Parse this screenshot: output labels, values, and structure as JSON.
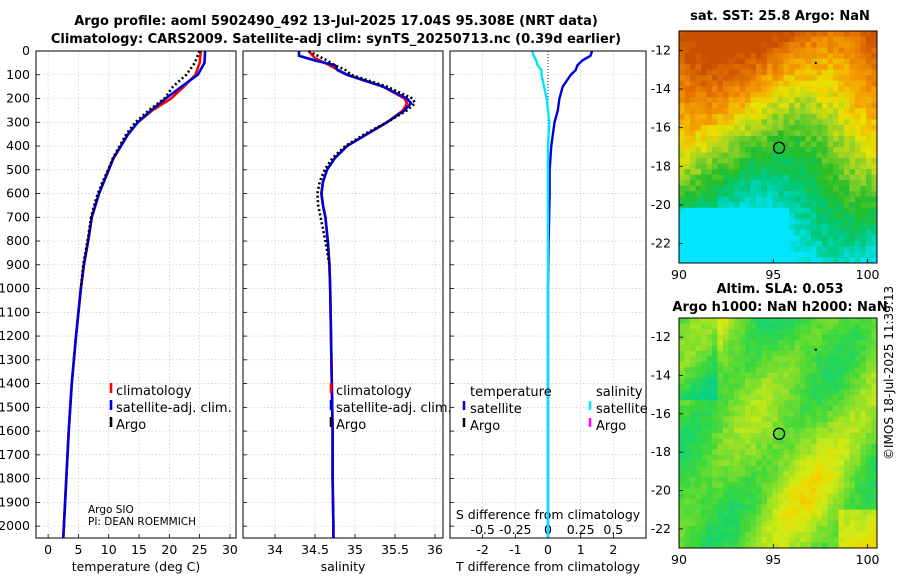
{
  "header": {
    "title_line1": "Argo profile: aoml 5902490_492 13-Jul-2025 17.04S 95.308E (NRT data)",
    "title_line2": "Climatology: CARS2009. Satellite-adj clim: synTS_20250713.nc (0.39d earlier)"
  },
  "maps": {
    "sst_title": "sat. SST: 25.8 Argo: NaN",
    "sla_title_line1": "Altim. SLA: 0.053",
    "sla_title_line2": "Argo h1000: NaN h2000: NaN",
    "x_ticks": [
      "90",
      "95",
      "100"
    ],
    "y_ticks": [
      "-12",
      "-14",
      "-16",
      "-18",
      "-20",
      "-22"
    ],
    "float_lon": 95.308,
    "float_lat": -17.04
  },
  "footer": {
    "stamp": "©IMOS 18-Jul-2025 11:39:13",
    "float_owner_line1": "Argo SIO",
    "float_owner_line2": "PI: DEAN ROEMMICH"
  },
  "colors": {
    "climatology": "#ff0000",
    "satellite": "#0000dd",
    "argo": "#000000",
    "salinity_satellite": "#00e5ff",
    "salinity_argo": "#ff00ff"
  },
  "chart_data": [
    {
      "type": "line",
      "title": "",
      "xlabel": "temperature (deg C)",
      "ylabel": "",
      "xlim": [
        -2,
        31
      ],
      "ylim": [
        2050,
        0
      ],
      "xticks": [
        "0",
        "5",
        "10",
        "15",
        "20",
        "25",
        "30"
      ],
      "yticks": [
        "0",
        "100",
        "200",
        "300",
        "400",
        "500",
        "600",
        "700",
        "800",
        "900",
        "1000",
        "1100",
        "1200",
        "1300",
        "1400",
        "1500",
        "1600",
        "1700",
        "1800",
        "1900",
        "2000"
      ],
      "legend": [
        "climatology",
        "satellite-adj. clim.",
        "Argo"
      ],
      "series": [
        {
          "name": "climatology",
          "depth": [
            0,
            50,
            100,
            150,
            200,
            250,
            300,
            350,
            400,
            450,
            500,
            550,
            600,
            650,
            700,
            800,
            900,
            1000,
            1200,
            1400,
            1600,
            1800,
            2000,
            2050
          ],
          "values": [
            25.2,
            25.0,
            24.3,
            22.4,
            20.3,
            17.2,
            14.8,
            13.2,
            12.0,
            10.8,
            10.0,
            9.2,
            8.4,
            7.8,
            7.2,
            6.6,
            5.9,
            5.4,
            4.6,
            3.9,
            3.4,
            3.0,
            2.6,
            2.5
          ]
        },
        {
          "name": "satellite-adj. clim.",
          "depth": [
            0,
            50,
            100,
            150,
            200,
            250,
            300,
            350,
            400,
            450,
            500,
            550,
            600,
            650,
            700,
            800,
            900,
            1000,
            1200,
            1400,
            1600,
            1800,
            2000,
            2050
          ],
          "values": [
            25.9,
            25.8,
            24.7,
            22.0,
            19.4,
            17.0,
            14.8,
            13.2,
            12.0,
            10.8,
            10.0,
            9.2,
            8.4,
            7.8,
            7.2,
            6.6,
            5.9,
            5.4,
            4.6,
            3.9,
            3.4,
            3.0,
            2.6,
            2.5
          ]
        },
        {
          "name": "Argo",
          "depth": [
            0,
            50,
            100,
            150,
            200,
            250,
            300,
            350,
            400,
            450,
            500,
            550,
            600,
            650,
            700,
            800,
            900,
            1000
          ],
          "values": [
            25.0,
            24.2,
            22.8,
            20.6,
            19.2,
            16.6,
            14.4,
            12.9,
            11.8,
            10.7,
            9.9,
            9.0,
            8.2,
            7.6,
            7.1,
            6.5,
            5.8,
            5.4
          ]
        }
      ]
    },
    {
      "type": "line",
      "title": "",
      "xlabel": "salinity",
      "ylabel": "",
      "xlim": [
        33.6,
        36.1
      ],
      "ylim": [
        2050,
        0
      ],
      "xticks": [
        "34",
        "34.5",
        "35",
        "35.5",
        "36"
      ],
      "legend": [
        "climatology",
        "satellite-adj. clim.",
        "Argo"
      ],
      "series": [
        {
          "name": "climatology",
          "depth": [
            0,
            30,
            60,
            100,
            150,
            200,
            220,
            250,
            300,
            350,
            400,
            450,
            500,
            550,
            600,
            650,
            700,
            800,
            900,
            1000,
            1200,
            1400,
            1600,
            1800,
            2000,
            2050
          ],
          "values": [
            34.42,
            34.5,
            34.68,
            34.9,
            35.35,
            35.62,
            35.65,
            35.6,
            35.4,
            35.15,
            34.9,
            34.75,
            34.65,
            34.6,
            34.58,
            34.6,
            34.63,
            34.66,
            34.68,
            34.69,
            34.7,
            34.71,
            34.72,
            34.72,
            34.73,
            34.73
          ]
        },
        {
          "name": "satellite-adj. clim.",
          "depth": [
            0,
            20,
            40,
            60,
            80,
            100,
            150,
            200,
            220,
            250,
            300,
            350,
            400,
            450,
            500,
            550,
            600,
            650,
            700,
            800,
            900,
            1000,
            1200,
            1400,
            1600,
            1800,
            2000,
            2050
          ],
          "values": [
            34.3,
            34.3,
            34.5,
            34.75,
            34.78,
            34.9,
            35.35,
            35.65,
            35.7,
            35.62,
            35.4,
            35.15,
            34.9,
            34.75,
            34.65,
            34.6,
            34.58,
            34.6,
            34.63,
            34.66,
            34.68,
            34.69,
            34.7,
            34.71,
            34.72,
            34.72,
            34.73,
            34.73
          ]
        },
        {
          "name": "Argo",
          "depth": [
            0,
            40,
            60,
            80,
            100,
            150,
            200,
            220,
            250,
            300,
            350,
            400,
            450,
            500,
            550,
            600,
            650,
            700,
            750,
            800,
            900
          ],
          "values": [
            34.42,
            34.65,
            34.75,
            34.88,
            34.95,
            35.4,
            35.72,
            35.75,
            35.65,
            35.4,
            35.12,
            34.88,
            34.72,
            34.62,
            34.56,
            34.53,
            34.54,
            34.57,
            34.6,
            34.63,
            34.68
          ]
        }
      ]
    },
    {
      "type": "line",
      "title": "",
      "xlabel": "T difference from climatology",
      "ylabel": "",
      "xlim": [
        -3,
        3
      ],
      "ylim": [
        2050,
        0
      ],
      "xticks": [
        "-2",
        "-1",
        "0",
        "1",
        "2"
      ],
      "x2label": "S difference from climatology",
      "x2ticks": [
        "-0.5",
        "-0.25",
        "0",
        "0.25",
        "0.5"
      ],
      "legend_headers": [
        "temperature",
        "salinity"
      ],
      "legend": [
        "satellite",
        "Argo",
        "satellite",
        "Argo"
      ],
      "series": [
        {
          "name": "temperature satellite",
          "depth": [
            0,
            20,
            40,
            60,
            80,
            100,
            150,
            200,
            250,
            300,
            350,
            400,
            500,
            600,
            800,
            1000,
            1500,
            2050
          ],
          "values": [
            1.35,
            1.3,
            1.05,
            0.9,
            0.85,
            0.7,
            0.45,
            0.35,
            0.3,
            0.2,
            0.15,
            0.1,
            0.05,
            0.05,
            0.02,
            0.0,
            0.0,
            0.0
          ]
        },
        {
          "name": "salinity satellite",
          "depth": [
            0,
            20,
            40,
            60,
            80,
            100,
            150,
            200,
            250,
            300,
            400,
            500,
            600,
            800,
            1000,
            1500,
            2050
          ],
          "values": [
            -0.12,
            -0.11,
            -0.09,
            -0.08,
            -0.05,
            -0.05,
            -0.03,
            -0.01,
            0.0,
            0.01,
            0.0,
            0.0,
            0.0,
            0.0,
            0.0,
            0.0,
            0.0
          ]
        }
      ]
    }
  ]
}
